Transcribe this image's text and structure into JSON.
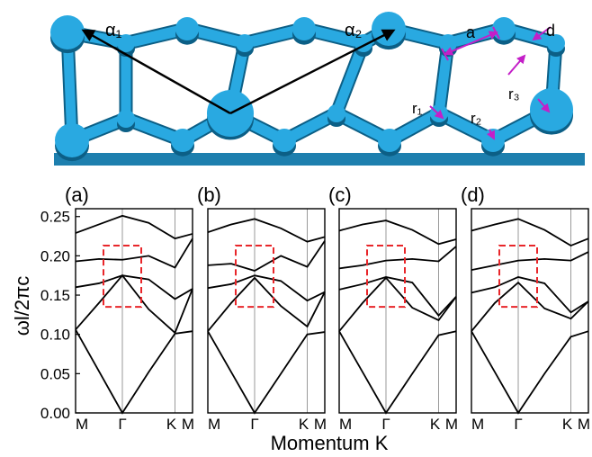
{
  "figure": {
    "lattice": {
      "vector_a1": "α₁",
      "vector_a2": "α₂",
      "label_a": "a",
      "label_d": "d",
      "label_r1": "r₁",
      "label_r2": "r₂",
      "label_r3": "r₃"
    },
    "axis_title_y": "ωl/2πc",
    "axis_title_x": "Momentum K",
    "colors": {
      "rod": "#29a9e1",
      "arrow": "#c41fc8",
      "box": "#e8262a",
      "band": "#000000",
      "grid": "#9a9a9a"
    }
  },
  "chart_data": [
    {
      "panel": "(a)",
      "type": "line",
      "x_ticks": [
        "M",
        "Γ",
        "K",
        "M"
      ],
      "ylim": [
        0,
        0.26
      ],
      "y_ticks": [
        "0.00",
        "0.05",
        "0.10",
        "0.15",
        "0.20",
        "0.25"
      ],
      "highlight_box": {
        "x_from": "Γ",
        "ylim": [
          0.135,
          0.213
        ]
      },
      "bands": [
        [
          0.106,
          0.053,
          0.0,
          0.052,
          0.101,
          0.104
        ],
        [
          0.106,
          0.14,
          0.175,
          0.132,
          0.102,
          0.158
        ],
        [
          0.16,
          0.165,
          0.175,
          0.17,
          0.145,
          0.158
        ],
        [
          0.193,
          0.196,
          0.195,
          0.2,
          0.185,
          0.222
        ],
        [
          0.229,
          0.24,
          0.251,
          0.242,
          0.222,
          0.228
        ]
      ]
    },
    {
      "panel": "(b)",
      "type": "line",
      "x_ticks": [
        "M",
        "Γ",
        "K",
        "M"
      ],
      "ylim": [
        0,
        0.26
      ],
      "highlight_box": {
        "x_from": "Γ",
        "ylim": [
          0.135,
          0.213
        ]
      },
      "bands": [
        [
          0.104,
          0.052,
          0.0,
          0.05,
          0.1,
          0.103
        ],
        [
          0.104,
          0.14,
          0.172,
          0.136,
          0.11,
          0.154
        ],
        [
          0.159,
          0.164,
          0.175,
          0.168,
          0.143,
          0.154
        ],
        [
          0.188,
          0.19,
          0.181,
          0.2,
          0.186,
          0.219
        ],
        [
          0.23,
          0.24,
          0.247,
          0.235,
          0.218,
          0.224
        ]
      ]
    },
    {
      "panel": "(c)",
      "type": "line",
      "x_ticks": [
        "M",
        "Γ",
        "K",
        "M"
      ],
      "ylim": [
        0,
        0.26
      ],
      "highlight_box": {
        "x_from": "Γ",
        "ylim": [
          0.135,
          0.213
        ]
      },
      "bands": [
        [
          0.104,
          0.052,
          0.0,
          0.05,
          0.099,
          0.104
        ],
        [
          0.104,
          0.14,
          0.172,
          0.134,
          0.118,
          0.148
        ],
        [
          0.157,
          0.164,
          0.173,
          0.166,
          0.124,
          0.148
        ],
        [
          0.184,
          0.188,
          0.194,
          0.196,
          0.193,
          0.212
        ],
        [
          0.232,
          0.24,
          0.245,
          0.233,
          0.215,
          0.221
        ]
      ]
    },
    {
      "panel": "(d)",
      "type": "line",
      "x_ticks": [
        "M",
        "Γ",
        "K",
        "M"
      ],
      "ylim": [
        0,
        0.26
      ],
      "highlight_box": {
        "x_from": "Γ",
        "ylim": [
          0.135,
          0.213
        ]
      },
      "bands": [
        [
          0.104,
          0.052,
          0.0,
          0.05,
          0.097,
          0.104
        ],
        [
          0.104,
          0.14,
          0.166,
          0.133,
          0.12,
          0.142
        ],
        [
          0.153,
          0.16,
          0.173,
          0.165,
          0.128,
          0.142
        ],
        [
          0.182,
          0.188,
          0.194,
          0.196,
          0.194,
          0.205
        ],
        [
          0.232,
          0.24,
          0.247,
          0.233,
          0.213,
          0.222
        ]
      ]
    }
  ]
}
